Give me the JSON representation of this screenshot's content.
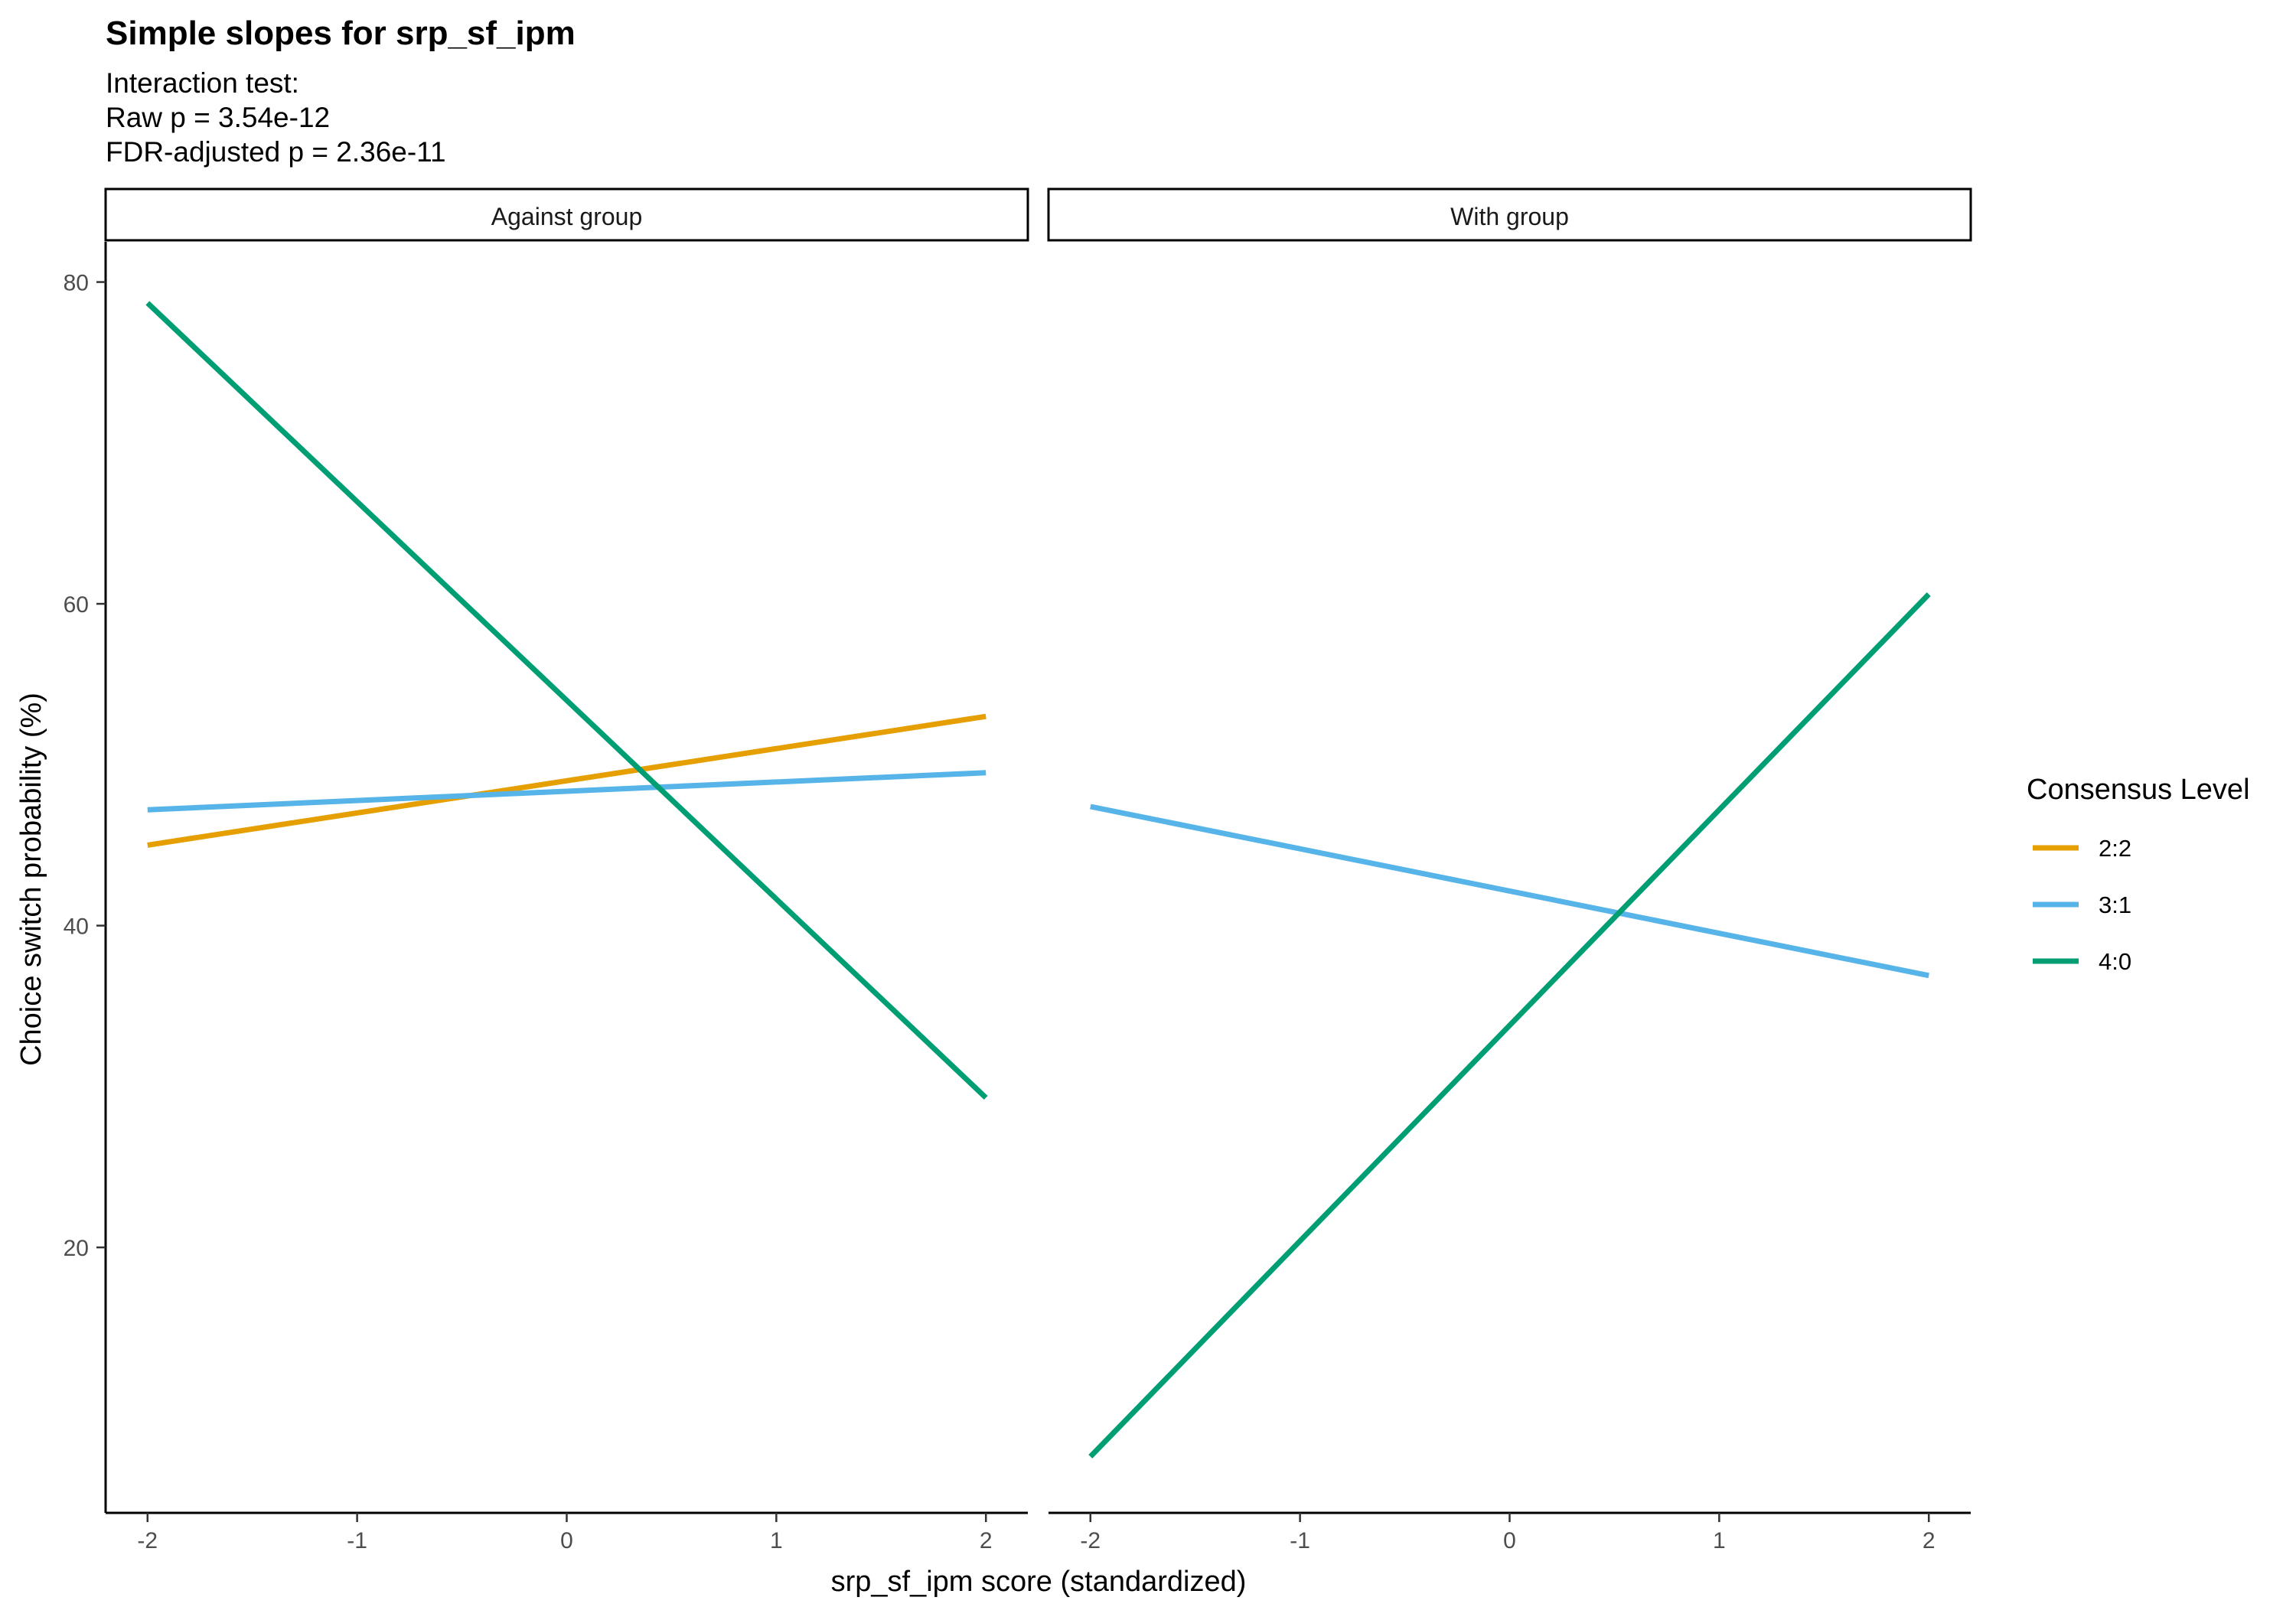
{
  "chart_data": {
    "type": "line",
    "title": "Simple slopes for srp_sf_ipm",
    "subtitle_lines": [
      "Interaction test:",
      "Raw p = 3.54e-12",
      "FDR-adjusted p = 2.36e-11"
    ],
    "xlabel": "srp_sf_ipm score (standardized)",
    "ylabel": "Choice switch probability (%)",
    "xlim": [
      -2.2,
      2.2
    ],
    "ylim": [
      3.5,
      82.5
    ],
    "x_ticks": [
      -2,
      -1,
      0,
      1,
      2
    ],
    "x_tick_labels": [
      "-2",
      "-1",
      "0",
      "1",
      "2"
    ],
    "y_ticks": [
      20,
      40,
      60,
      80
    ],
    "y_tick_labels": [
      "20",
      "40",
      "60",
      "80"
    ],
    "grid": false,
    "legend": {
      "title": "Consensus Level",
      "placement": "right",
      "entries": [
        {
          "label": "2:2",
          "color": "#E69F00"
        },
        {
          "label": "3:1",
          "color": "#56B4E9"
        },
        {
          "label": "4:0",
          "color": "#009E73"
        }
      ]
    },
    "panels": [
      {
        "label": "Against group",
        "series": [
          {
            "name": "2:2",
            "color": "#E69F00",
            "x": [
              -2,
              2
            ],
            "y": [
              45.0,
              53.0
            ]
          },
          {
            "name": "3:1",
            "color": "#56B4E9",
            "x": [
              -2,
              2
            ],
            "y": [
              47.2,
              49.5
            ]
          },
          {
            "name": "4:0",
            "color": "#009E73",
            "x": [
              -2,
              2
            ],
            "y": [
              78.7,
              29.3
            ]
          }
        ]
      },
      {
        "label": "With group",
        "series": [
          {
            "name": "3:1",
            "color": "#56B4E9",
            "x": [
              -2,
              2
            ],
            "y": [
              47.4,
              36.9
            ]
          },
          {
            "name": "4:0",
            "color": "#009E73",
            "x": [
              -2,
              2
            ],
            "y": [
              7.0,
              60.6
            ]
          }
        ]
      }
    ]
  }
}
